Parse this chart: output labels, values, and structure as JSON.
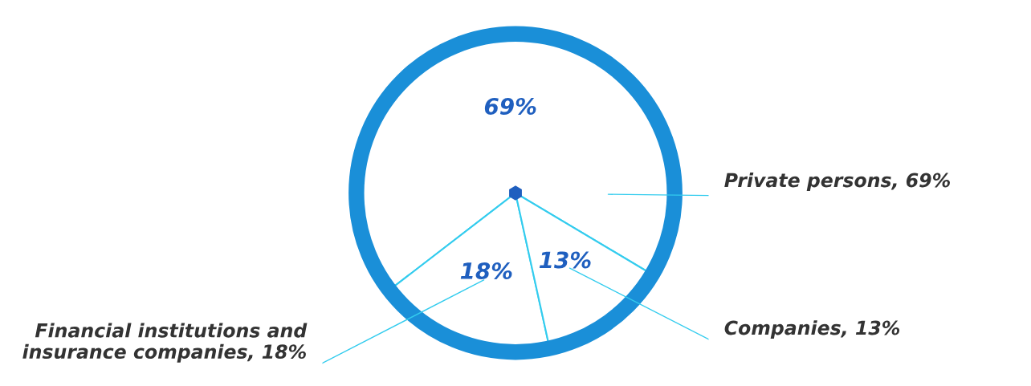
{
  "chart_data": {
    "type": "pie",
    "categories": [
      "Private persons, 69%",
      "Financial institutions and\ninsurance companies, 18%",
      "Companies, 13%"
    ],
    "values": [
      69,
      18,
      13
    ],
    "value_labels": [
      "69%",
      "18%",
      "13%"
    ],
    "colors": [
      "#ffffff",
      "#ffffff",
      "#ffffff"
    ]
  }
}
